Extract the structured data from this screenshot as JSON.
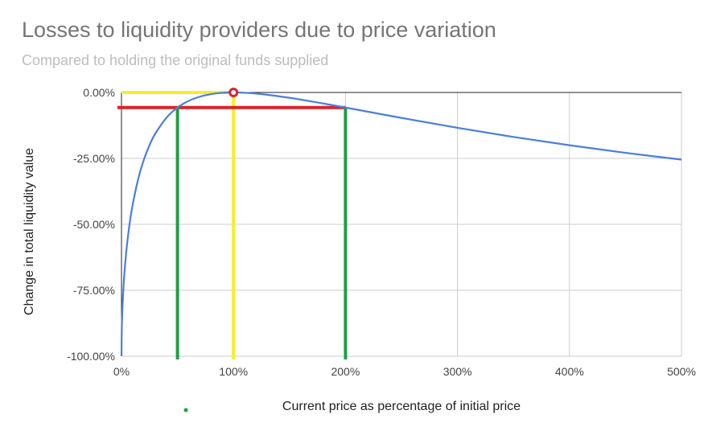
{
  "colors": {
    "curve": "#4a7fdc",
    "gridline": "#cccccc",
    "axis": "#222222",
    "yellow": "#f7ee2a",
    "red": "#dd2227",
    "green": "#1f9e45",
    "legend_dot": "#1f9e45"
  },
  "chart_data": {
    "type": "line",
    "title": "Losses to liquidity providers due to price variation",
    "subtitle": "Compared to holding the original funds supplied",
    "xlabel": "Current price as percentage of initial price",
    "ylabel": "Change in total liquidity value",
    "xlim": [
      0,
      500
    ],
    "ylim": [
      -100,
      0
    ],
    "x_ticks": [
      "0%",
      "100%",
      "200%",
      "300%",
      "400%",
      "500%"
    ],
    "y_ticks": [
      "0.00%",
      "-25.00%",
      "-50.00%",
      "-75.00%",
      "-100.00%"
    ],
    "grid": true,
    "legend": "bottom",
    "series": [
      {
        "x": [
          0,
          0.25,
          0.5,
          1,
          2,
          3,
          5,
          7.5,
          10,
          15,
          20,
          25,
          30,
          40,
          50,
          60,
          70,
          80,
          90,
          100,
          110,
          125,
          150,
          175,
          200,
          250,
          300,
          350,
          400,
          450,
          500
        ],
        "y": [
          -100,
          -90.02,
          -85.99,
          -80.2,
          -72.27,
          -66.38,
          -57.4,
          -49.04,
          -42.51,
          -32.68,
          -25.46,
          -20,
          -15.74,
          -9.65,
          -5.72,
          -3.18,
          -1.6,
          -0.62,
          -0.14,
          0,
          -0.11,
          -0.62,
          -2.02,
          -3.79,
          -5.72,
          -9.64,
          -13.4,
          -16.87,
          -20,
          -22.89,
          -25.46
        ]
      }
    ],
    "annotations": [
      {
        "type": "marker",
        "x": 100,
        "y": 0
      },
      {
        "type": "hline",
        "y": 0,
        "x_range": [
          0,
          100
        ],
        "color": "yellow"
      },
      {
        "type": "vline",
        "x": 100,
        "y_range": [
          -100,
          0
        ],
        "color": "yellow"
      },
      {
        "type": "hline",
        "y": -5.72,
        "x_range": [
          0,
          200
        ],
        "color": "red"
      },
      {
        "type": "vline",
        "x": 50,
        "y_range": [
          -100,
          -5.72
        ],
        "color": "green"
      },
      {
        "type": "vline",
        "x": 200,
        "y_range": [
          -100,
          -5.72
        ],
        "color": "green"
      }
    ]
  }
}
